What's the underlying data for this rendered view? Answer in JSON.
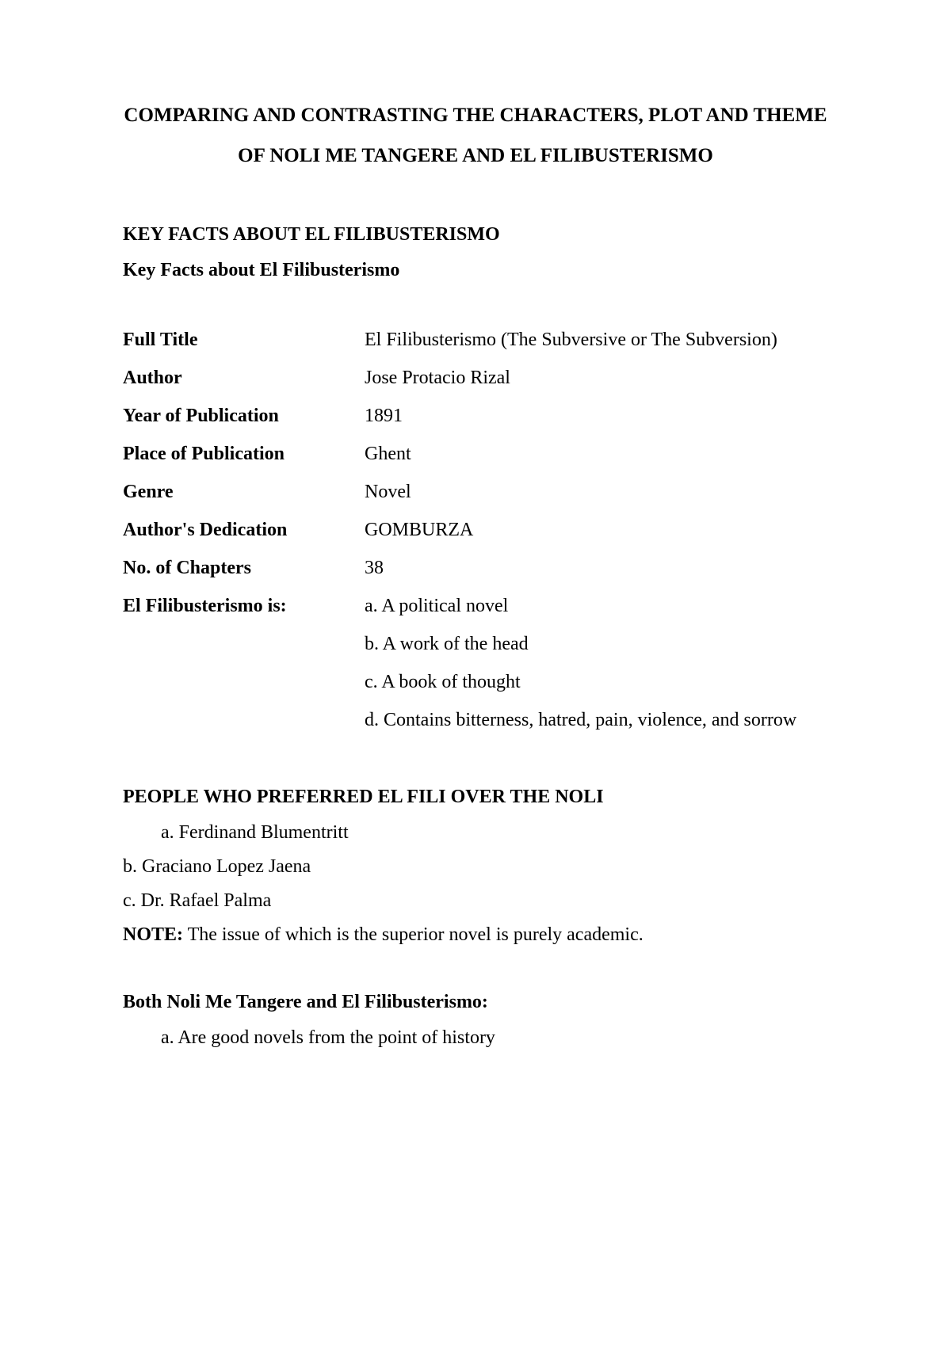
{
  "title": "COMPARING AND CONTRASTING THE CHARACTERS, PLOT AND THEME OF NOLI ME TANGERE AND EL FILIBUSTERISMO",
  "keyFactsHeading": "KEY FACTS ABOUT EL FILIBUSTERISMO",
  "keyFactsSubheading": "Key Facts about El Filibusterismo",
  "facts": {
    "fullTitle": {
      "label": "Full Title",
      "value": "El Filibusterismo (The Subversive or The Subversion)"
    },
    "author": {
      "label": "Author",
      "value": "Jose Protacio Rizal"
    },
    "year": {
      "label": "Year of Publication",
      "value": "1891"
    },
    "place": {
      "label": "Place of Publication",
      "value": "Ghent"
    },
    "genre": {
      "label": "Genre",
      "value": "Novel"
    },
    "dedication": {
      "label": "Author's Dedication",
      "value": "GOMBURZA"
    },
    "chapters": {
      "label": "No. of Chapters",
      "value": "38"
    },
    "elFiliIs": {
      "label": "El Filibusterismo is:",
      "a": "a. A political novel",
      "b": "b. A work of the head",
      "c": "c. A book of thought",
      "d": "d. Contains bitterness, hatred, pain, violence, and sorrow"
    }
  },
  "preferredHeading": "PEOPLE WHO PREFERRED EL FILI OVER THE NOLI",
  "preferred": {
    "a": "a. Ferdinand Blumentritt",
    "b": "b. Graciano Lopez Jaena",
    "c": "c. Dr. Rafael Palma"
  },
  "noteLabel": "NOTE:",
  "noteText": " The issue of which is the superior novel is purely academic.",
  "bothHeading": "Both Noli Me Tangere and El Filibusterismo:",
  "both": {
    "a": "a. Are good novels from the point of history"
  }
}
